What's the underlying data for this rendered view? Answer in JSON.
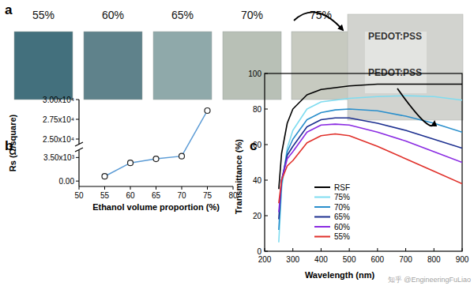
{
  "panel_a": {
    "title": "a",
    "samples": [
      {
        "label": "55%",
        "color": "#43707d"
      },
      {
        "label": "60%",
        "color": "#5f828b"
      },
      {
        "label": "65%",
        "color": "#8fa9aa"
      },
      {
        "label": "70%",
        "color": "#b8c0b6"
      },
      {
        "label": "75%",
        "color": "#c7cac0"
      }
    ],
    "inset_color": "#d2d3cf",
    "inset_labels": [
      "PEDOT:PSS",
      "PEDOT:PSS"
    ]
  },
  "chart_data": [
    {
      "type": "line",
      "title": "b",
      "x_label": "Ethanol volume proportion (%)",
      "y_label": "Rs (Ω/square)",
      "x": [
        55,
        60,
        65,
        70,
        75
      ],
      "values": [
        700,
        2700,
        3300,
        3700,
        28600
      ],
      "color": "#5b9bd5",
      "marker": "circle",
      "xlim": [
        50,
        80
      ],
      "xticks": [
        50,
        55,
        60,
        65,
        70,
        75,
        80
      ],
      "ylim": [
        -800,
        30000
      ],
      "y_segments": [
        [
          -800,
          4600
        ],
        [
          24300,
          30000
        ]
      ],
      "yticks": [
        {
          "value": 0,
          "label": "0.00"
        },
        {
          "value": 3500,
          "label": "3.50x10³"
        },
        {
          "value": 25000,
          "label": "2.50x10⁴"
        },
        {
          "value": 27500,
          "label": "2.75x10⁴"
        },
        {
          "value": 30000,
          "label": "3.00x10⁴"
        }
      ],
      "grid": false
    },
    {
      "type": "line",
      "title": "c",
      "x_label": "Wavelength (nm)",
      "y_label": "Transmittance (%)",
      "x": [
        250,
        260,
        280,
        300,
        350,
        400,
        450,
        500,
        600,
        700,
        800,
        900
      ],
      "series": [
        {
          "name": "RSF",
          "color": "#000000",
          "values": [
            35,
            55,
            72,
            80,
            88,
            91,
            92,
            93,
            94,
            94,
            94,
            94
          ]
        },
        {
          "name": "75%",
          "color": "#7fdcf0",
          "values": [
            5,
            35,
            58,
            68,
            80,
            84,
            85,
            86,
            87,
            87.5,
            87,
            85
          ]
        },
        {
          "name": "70%",
          "color": "#2a8fcc",
          "values": [
            12,
            38,
            56,
            63,
            74,
            78,
            79.5,
            80,
            79,
            76,
            72,
            67
          ]
        },
        {
          "name": "65%",
          "color": "#1c2f8f",
          "values": [
            18,
            40,
            54,
            59,
            70,
            74,
            75,
            75,
            72,
            68,
            63,
            58
          ]
        },
        {
          "name": "60%",
          "color": "#8a2be2",
          "values": [
            22,
            40,
            52,
            56,
            67,
            71,
            71.5,
            71,
            67,
            62,
            56,
            50
          ]
        },
        {
          "name": "55%",
          "color": "#e0302a",
          "values": [
            27,
            40,
            48,
            51,
            61,
            65,
            66,
            65,
            59,
            52,
            45,
            38
          ]
        }
      ],
      "xlim": [
        200,
        900
      ],
      "xticks": [
        200,
        300,
        400,
        500,
        600,
        700,
        800,
        900
      ],
      "ylim": [
        0,
        100
      ],
      "yticks": [
        0,
        20,
        40,
        60,
        80,
        100
      ],
      "legend": "lower left",
      "grid": false
    }
  ],
  "watermark": "知乎 @EngineeringFuLiao"
}
